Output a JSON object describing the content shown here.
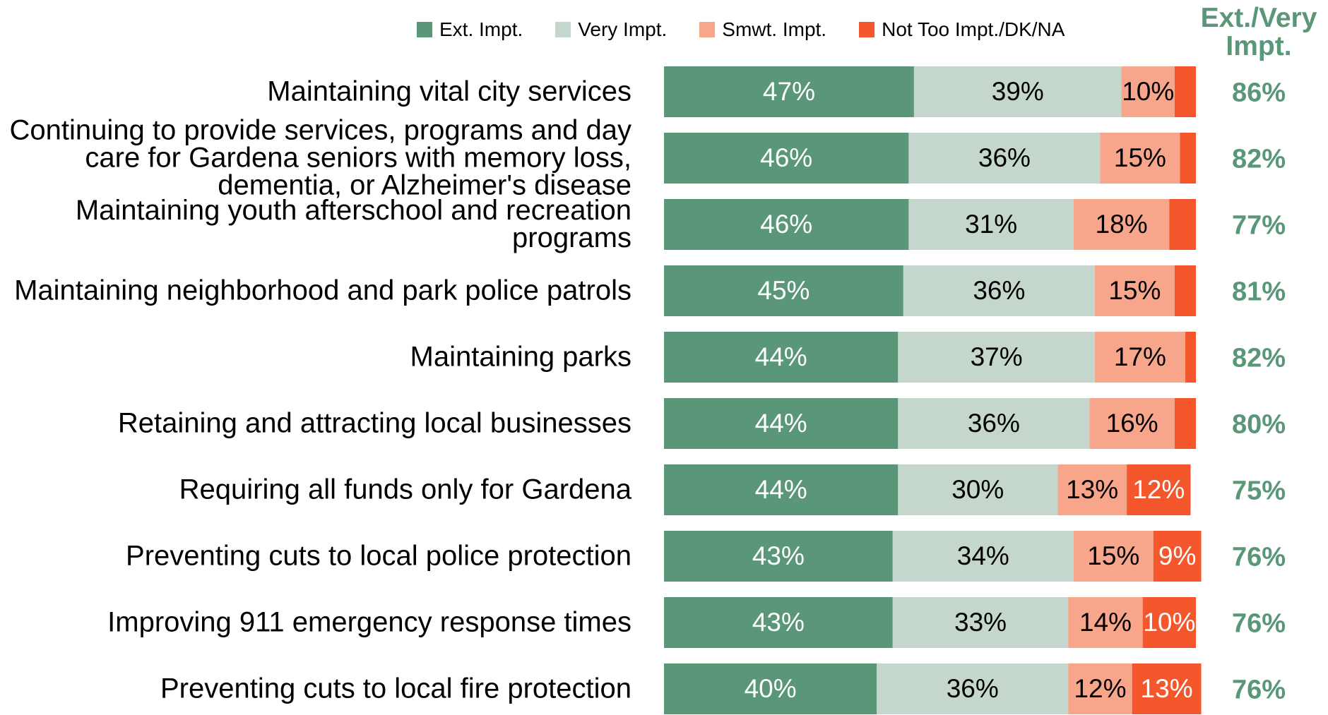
{
  "chart_data": {
    "type": "stacked-bar-horizontal",
    "categories": [
      "Maintaining vital city services",
      "Continuing to provide services, programs and day care for Gardena seniors with memory loss, dementia, or Alzheimer's disease",
      "Maintaining youth afterschool and recreation programs",
      "Maintaining neighborhood and park police patrols",
      "Maintaining parks",
      "Retaining and attracting local businesses",
      "Requiring all funds only for Gardena",
      "Preventing cuts to local police protection",
      "Improving 911 emergency response times",
      "Preventing cuts to local fire protection"
    ],
    "series": [
      {
        "name": "Ext. Impt.",
        "color": "#5a9678",
        "label_color": "#ffffff",
        "values": [
          47,
          46,
          46,
          45,
          44,
          44,
          44,
          43,
          43,
          40
        ],
        "value_labels": [
          "47%",
          "46%",
          "46%",
          "45%",
          "44%",
          "44%",
          "44%",
          "43%",
          "43%",
          "40%"
        ]
      },
      {
        "name": "Very Impt.",
        "color": "#c5d6cc",
        "label_color": "#000000",
        "values": [
          39,
          36,
          31,
          36,
          37,
          36,
          30,
          34,
          33,
          36
        ],
        "value_labels": [
          "39%",
          "36%",
          "31%",
          "36%",
          "37%",
          "36%",
          "30%",
          "34%",
          "33%",
          "36%"
        ]
      },
      {
        "name": "Smwt. Impt.",
        "color": "#f7a58b",
        "label_color": "#000000",
        "values": [
          10,
          15,
          18,
          15,
          17,
          16,
          13,
          15,
          14,
          12
        ],
        "value_labels": [
          "10%",
          "15%",
          "18%",
          "15%",
          "17%",
          "16%",
          "13%",
          "15%",
          "14%",
          "12%"
        ]
      },
      {
        "name": "Not Too Impt./DK/NA",
        "color": "#f4572c",
        "label_color": "#ffffff",
        "values": [
          4,
          3,
          5,
          4,
          2,
          4,
          12,
          9,
          10,
          13
        ],
        "value_labels": [
          null,
          null,
          null,
          null,
          null,
          null,
          "12%",
          "9%",
          "10%",
          "13%"
        ]
      }
    ],
    "xlim": [
      0,
      100
    ],
    "totals": {
      "title": "Ext./Very Impt.",
      "color": "#5a9678",
      "values": [
        86,
        82,
        77,
        81,
        82,
        80,
        75,
        76,
        76,
        76
      ],
      "value_labels": [
        "86%",
        "82%",
        "77%",
        "81%",
        "82%",
        "80%",
        "75%",
        "76%",
        "76%",
        "76%"
      ]
    }
  }
}
